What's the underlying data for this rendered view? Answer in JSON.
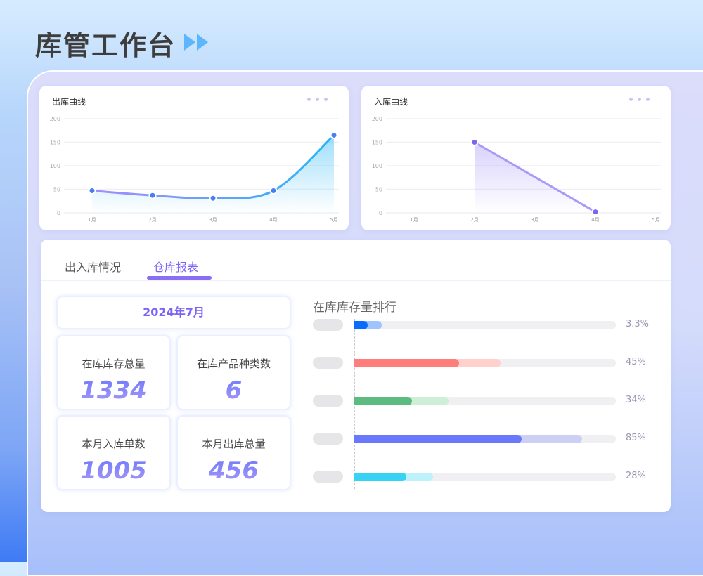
{
  "header": {
    "title": "库管工作台",
    "icon": "double-chevron-right-icon"
  },
  "charts": {
    "outbound": {
      "title": "出库曲线",
      "menu_icon": "more-dots-icon"
    },
    "inbound": {
      "title": "入库曲线",
      "menu_icon": "more-dots-icon"
    }
  },
  "chart_data": [
    {
      "type": "line",
      "title": "出库曲线",
      "categories": [
        "1月",
        "2月",
        "3月",
        "4月",
        "5月"
      ],
      "values": [
        47,
        37,
        31,
        47,
        165
      ],
      "ylim": [
        0,
        200
      ],
      "yticks": [
        0,
        50,
        100,
        150,
        200
      ],
      "grid": true,
      "smooth": true,
      "area": true,
      "colors": [
        "#a78bfa",
        "#29b6f6"
      ]
    },
    {
      "type": "line",
      "title": "入库曲线",
      "categories": [
        "1月",
        "2月",
        "3月",
        "4月",
        "5月"
      ],
      "values": [
        null,
        150,
        null,
        2,
        null
      ],
      "ylim": [
        0,
        200
      ],
      "yticks": [
        0,
        50,
        100,
        150,
        200
      ],
      "grid": true,
      "area": true,
      "colors": [
        "#a99af7"
      ]
    }
  ],
  "tabs": [
    {
      "label": "出入库情况",
      "active": false
    },
    {
      "label": "仓库报表",
      "active": true
    }
  ],
  "report": {
    "date": "2024年7月",
    "stats": [
      {
        "label": "在库库存总量",
        "value": "1334"
      },
      {
        "label": "在库产品种类数",
        "value": "6"
      },
      {
        "label": "本月入库单数",
        "value": "1005"
      },
      {
        "label": "本月出库总量",
        "value": "456"
      }
    ],
    "ranking_title": "在库库存量排行",
    "ranking": [
      {
        "pct": "3.3%",
        "dark": 0.05,
        "light": 0.105,
        "color": "#0a6cff",
        "light_color": "#9ec4ff"
      },
      {
        "pct": "45%",
        "dark": 0.4,
        "light": 0.56,
        "color": "#ff7e7c",
        "light_color": "#ffd0cc"
      },
      {
        "pct": "34%",
        "dark": 0.22,
        "light": 0.36,
        "color": "#5bbb80",
        "light_color": "#ccefd6"
      },
      {
        "pct": "85%",
        "dark": 0.64,
        "light": 0.87,
        "color": "#6a78fb",
        "light_color": "#cdd0f5"
      },
      {
        "pct": "28%",
        "dark": 0.2,
        "light": 0.3,
        "color": "#37d3f5",
        "light_color": "#bdf1fc"
      }
    ]
  }
}
